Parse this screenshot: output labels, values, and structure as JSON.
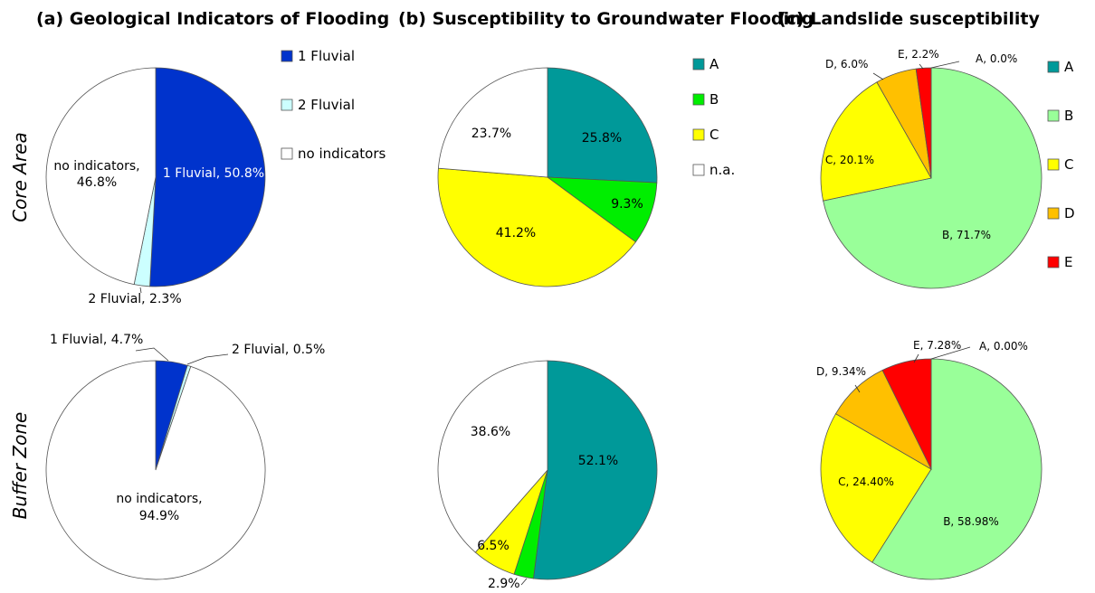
{
  "panel_titles": {
    "a": "(a) Geological Indicators of Flooding",
    "b": "(b) Susceptibility to Groundwater Flooding",
    "c": "(c) Landslide susceptibility"
  },
  "row_labels": {
    "core": "Core Area",
    "buffer": "Buffer Zone"
  },
  "legends": {
    "a": [
      {
        "label": "1 Fluvial",
        "color": "#0033cc"
      },
      {
        "label": "2 Fluvial",
        "color": "#ccffff"
      },
      {
        "label": "no indicators",
        "color": "#ffffff"
      }
    ],
    "b": [
      {
        "label": "A",
        "color": "#009999"
      },
      {
        "label": "B",
        "color": "#00ee00"
      },
      {
        "label": "C",
        "color": "#ffff00"
      },
      {
        "label": "n.a.",
        "color": "#ffffff"
      }
    ],
    "c": [
      {
        "label": "A",
        "color": "#009999"
      },
      {
        "label": "B",
        "color": "#99ff99"
      },
      {
        "label": "C",
        "color": "#ffff00"
      },
      {
        "label": "D",
        "color": "#ffc000"
      },
      {
        "label": "E",
        "color": "#ff0000"
      }
    ]
  },
  "chart_data": [
    {
      "type": "pie",
      "panel": "a",
      "row": "Core Area",
      "slices": [
        {
          "category": "1 Fluvial",
          "value": 50.8,
          "label": "1 Fluvial, 50.8%",
          "color": "#0033cc"
        },
        {
          "category": "2 Fluvial",
          "value": 2.3,
          "label": "2 Fluvial, 2.3%",
          "color": "#ccffff"
        },
        {
          "category": "no indicators",
          "value": 46.8,
          "label": "no indicators,\n46.8%",
          "color": "#ffffff"
        }
      ]
    },
    {
      "type": "pie",
      "panel": "b",
      "row": "Core Area",
      "slices": [
        {
          "category": "A",
          "value": 25.8,
          "label": "25.8%",
          "color": "#009999"
        },
        {
          "category": "B",
          "value": 9.3,
          "label": "9.3%",
          "color": "#00ee00"
        },
        {
          "category": "C",
          "value": 41.2,
          "label": "41.2%",
          "color": "#ffff00"
        },
        {
          "category": "n.a.",
          "value": 23.7,
          "label": "23.7%",
          "color": "#ffffff"
        }
      ]
    },
    {
      "type": "pie",
      "panel": "c",
      "row": "Core Area",
      "slices": [
        {
          "category": "A",
          "value": 0.0,
          "label": "A, 0.0%",
          "color": "#009999"
        },
        {
          "category": "B",
          "value": 71.7,
          "label": "B, 71.7%",
          "color": "#99ff99"
        },
        {
          "category": "C",
          "value": 20.1,
          "label": "C, 20.1%",
          "color": "#ffff00"
        },
        {
          "category": "D",
          "value": 6.0,
          "label": "D, 6.0%",
          "color": "#ffc000"
        },
        {
          "category": "E",
          "value": 2.2,
          "label": "E, 2.2%",
          "color": "#ff0000"
        }
      ]
    },
    {
      "type": "pie",
      "panel": "a",
      "row": "Buffer Zone",
      "slices": [
        {
          "category": "1 Fluvial",
          "value": 4.7,
          "label": "1 Fluvial, 4.7%",
          "color": "#0033cc"
        },
        {
          "category": "2 Fluvial",
          "value": 0.5,
          "label": "2 Fluvial, 0.5%",
          "color": "#ccffff"
        },
        {
          "category": "no indicators",
          "value": 94.9,
          "label": "no indicators,\n94.9%",
          "color": "#ffffff"
        }
      ]
    },
    {
      "type": "pie",
      "panel": "b",
      "row": "Buffer Zone",
      "slices": [
        {
          "category": "A",
          "value": 52.1,
          "label": "52.1%",
          "color": "#009999"
        },
        {
          "category": "B",
          "value": 2.9,
          "label": "2.9%",
          "color": "#00ee00"
        },
        {
          "category": "C",
          "value": 6.5,
          "label": "6.5%",
          "color": "#ffff00"
        },
        {
          "category": "n.a.",
          "value": 38.6,
          "label": "38.6%",
          "color": "#ffffff"
        }
      ]
    },
    {
      "type": "pie",
      "panel": "c",
      "row": "Buffer Zone",
      "slices": [
        {
          "category": "A",
          "value": 0.0,
          "label": "A, 0.00%",
          "color": "#009999"
        },
        {
          "category": "B",
          "value": 58.98,
          "label": "B, 58.98%",
          "color": "#99ff99"
        },
        {
          "category": "C",
          "value": 24.4,
          "label": "C, 24.40%",
          "color": "#ffff00"
        },
        {
          "category": "D",
          "value": 9.34,
          "label": "D, 9.34%",
          "color": "#ffc000"
        },
        {
          "category": "E",
          "value": 7.28,
          "label": "E, 7.28%",
          "color": "#ff0000"
        }
      ]
    }
  ]
}
